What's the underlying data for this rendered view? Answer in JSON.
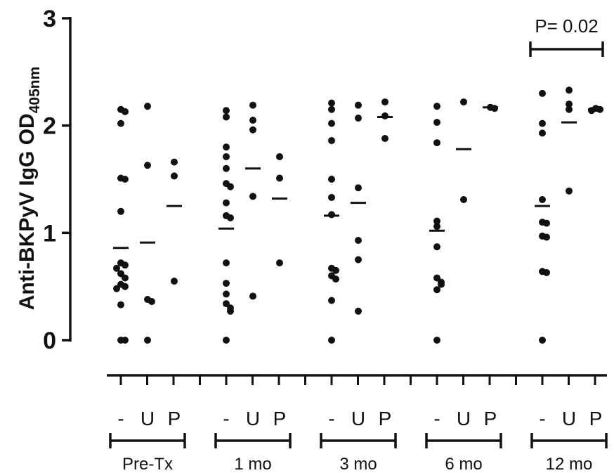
{
  "chart_data": {
    "type": "scatter",
    "ylabel": "Anti-BKPyV IgG OD",
    "ylabel_subscript": "405nm",
    "ylim": [
      0,
      3
    ],
    "yticks": [
      "0",
      "1",
      "2",
      "3"
    ],
    "grid": false,
    "legend": "none",
    "condition_labels": [
      "-",
      "U",
      "P"
    ],
    "groups": [
      {
        "name": "Pre-Tx",
        "columns": [
          {
            "condition": "-",
            "mean": 0.86,
            "points": [
              2.15,
              2.13,
              2.02,
              1.51,
              1.5,
              1.2,
              0.72,
              0.7,
              0.67,
              0.62,
              0.58,
              0.52,
              0.5,
              0.48,
              0.33,
              0.0,
              0.0
            ]
          },
          {
            "condition": "U",
            "mean": 0.91,
            "points": [
              2.18,
              1.63,
              0.38,
              0.36,
              0.0
            ]
          },
          {
            "condition": "P",
            "mean": 1.25,
            "points": [
              1.66,
              1.53,
              0.55
            ]
          }
        ]
      },
      {
        "name": "1 mo",
        "columns": [
          {
            "condition": "-",
            "mean": 1.04,
            "points": [
              2.14,
              2.08,
              1.8,
              1.71,
              1.6,
              1.46,
              1.43,
              1.28,
              1.16,
              1.14,
              0.72,
              0.53,
              0.43,
              0.34,
              0.3,
              0.27,
              0.0
            ]
          },
          {
            "condition": "U",
            "mean": 1.6,
            "points": [
              2.19,
              2.05,
              1.96,
              1.34,
              0.41
            ]
          },
          {
            "condition": "P",
            "mean": 1.32,
            "points": [
              1.71,
              1.51,
              0.72
            ]
          }
        ]
      },
      {
        "name": "3 mo",
        "columns": [
          {
            "condition": "-",
            "mean": 1.16,
            "points": [
              2.21,
              2.15,
              2.02,
              1.86,
              1.5,
              1.33,
              1.17,
              0.67,
              0.65,
              0.6,
              0.57,
              0.37,
              0.0
            ]
          },
          {
            "condition": "U",
            "mean": 1.28,
            "points": [
              2.19,
              2.07,
              1.42,
              0.93,
              0.75,
              0.27
            ]
          },
          {
            "condition": "P",
            "mean": 2.08,
            "points": [
              2.22,
              2.09,
              1.88
            ]
          }
        ]
      },
      {
        "name": "6 mo",
        "columns": [
          {
            "condition": "-",
            "mean": 1.02,
            "points": [
              2.18,
              2.03,
              1.84,
              1.11,
              1.06,
              0.87,
              0.58,
              0.54,
              0.52,
              0.47,
              0.0
            ]
          },
          {
            "condition": "U",
            "mean": 1.78,
            "points": [
              2.22,
              1.31
            ]
          },
          {
            "condition": "P",
            "mean": 2.17,
            "points": [
              2.17,
              2.16
            ]
          }
        ]
      },
      {
        "name": "12 mo",
        "columns": [
          {
            "condition": "-",
            "mean": 1.25,
            "points": [
              2.3,
              2.02,
              1.93,
              1.31,
              1.1,
              1.09,
              0.97,
              0.96,
              0.64,
              0.63,
              0.0
            ]
          },
          {
            "condition": "U",
            "mean": 2.03,
            "points": [
              2.33,
              2.2,
              2.15,
              1.39
            ]
          },
          {
            "condition": "P",
            "mean": 2.15,
            "points": [
              2.16,
              2.15,
              2.14
            ]
          }
        ]
      }
    ],
    "annotations": [
      {
        "text": "P= 0.02",
        "group": "12 mo",
        "from": "-",
        "to": "P"
      }
    ]
  }
}
